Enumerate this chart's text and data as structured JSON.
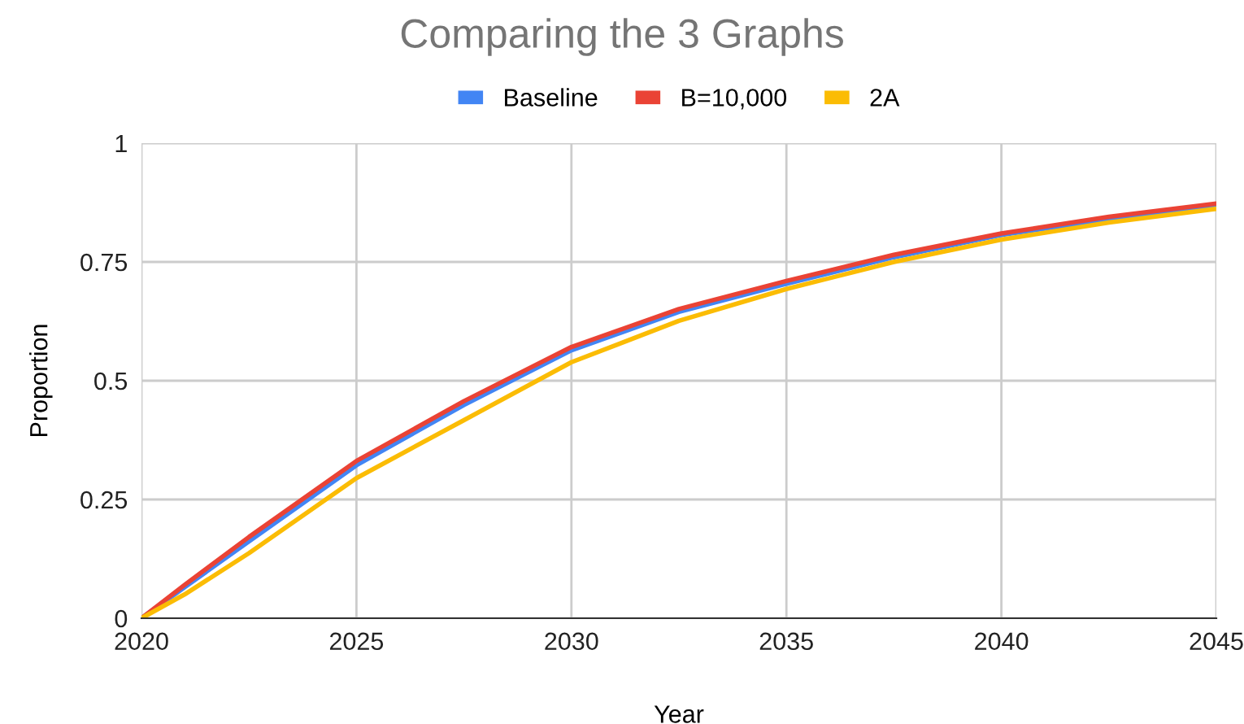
{
  "chart_data": {
    "type": "line",
    "title": "Comparing the 3 Graphs",
    "xlabel": "Year",
    "ylabel": "Proportion",
    "x": [
      2020,
      2021,
      2022.5,
      2025,
      2027.5,
      2030,
      2032.5,
      2035,
      2037.5,
      2040,
      2042.5,
      2045
    ],
    "series": [
      {
        "name": "Baseline",
        "color": "#4285f4",
        "values": [
          0,
          0.065,
          0.162,
          0.322,
          0.449,
          0.564,
          0.645,
          0.704,
          0.76,
          0.807,
          0.84,
          0.868
        ]
      },
      {
        "name": "B=10,000",
        "color": "#ea4335",
        "values": [
          0,
          0.07,
          0.171,
          0.331,
          0.457,
          0.571,
          0.651,
          0.71,
          0.765,
          0.81,
          0.845,
          0.873
        ]
      },
      {
        "name": "2A",
        "color": "#fbbc04",
        "values": [
          0,
          0.05,
          0.137,
          0.295,
          0.417,
          0.539,
          0.626,
          0.693,
          0.75,
          0.797,
          0.833,
          0.862
        ]
      }
    ],
    "xlim": [
      2020,
      2045
    ],
    "xticks": [
      2020,
      2025,
      2030,
      2035,
      2040,
      2045
    ],
    "ylim": [
      0,
      1
    ],
    "yticks": [
      0,
      0.25,
      0.5,
      0.75,
      1
    ],
    "grid": true,
    "legend": "top",
    "marker": "none",
    "line_style": "solid"
  }
}
